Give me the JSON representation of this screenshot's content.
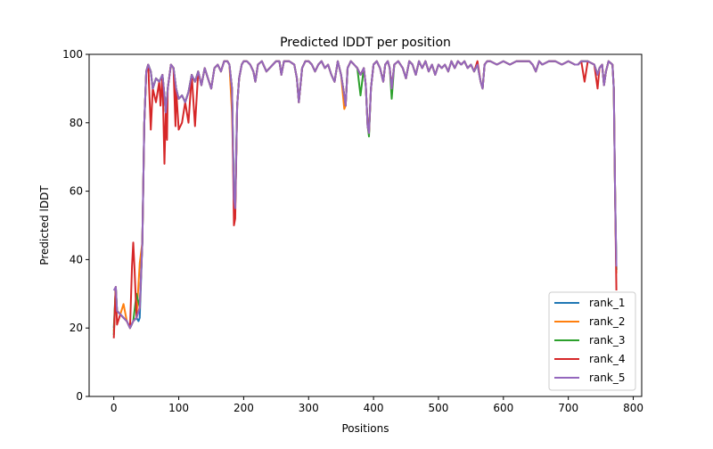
{
  "chart_data": {
    "type": "line",
    "title": "Predicted lDDT per position",
    "xlabel": "Positions",
    "ylabel": "Predicted lDDT",
    "xlim": [
      -38,
      813
    ],
    "ylim": [
      0,
      100
    ],
    "xticks": [
      0,
      100,
      200,
      300,
      400,
      500,
      600,
      700,
      800
    ],
    "yticks": [
      0,
      20,
      40,
      60,
      80,
      100
    ],
    "grid": false,
    "legend_placement": "lower-right",
    "base_profile": [
      [
        0,
        31
      ],
      [
        3,
        32
      ],
      [
        5,
        25
      ],
      [
        10,
        24
      ],
      [
        15,
        23
      ],
      [
        20,
        22
      ],
      [
        25,
        20
      ],
      [
        30,
        22
      ],
      [
        35,
        23
      ],
      [
        40,
        26
      ],
      [
        44,
        45
      ],
      [
        47,
        80
      ],
      [
        50,
        95
      ],
      [
        53,
        97
      ],
      [
        57,
        95
      ],
      [
        60,
        90
      ],
      [
        65,
        93
      ],
      [
        70,
        92
      ],
      [
        75,
        94
      ],
      [
        78,
        88
      ],
      [
        80,
        83
      ],
      [
        83,
        90
      ],
      [
        88,
        97
      ],
      [
        92,
        96
      ],
      [
        96,
        90
      ],
      [
        100,
        87
      ],
      [
        105,
        88
      ],
      [
        110,
        86
      ],
      [
        115,
        89
      ],
      [
        120,
        94
      ],
      [
        125,
        92
      ],
      [
        130,
        95
      ],
      [
        135,
        91
      ],
      [
        140,
        96
      ],
      [
        145,
        93
      ],
      [
        150,
        90
      ],
      [
        155,
        96
      ],
      [
        160,
        97
      ],
      [
        165,
        95
      ],
      [
        170,
        98
      ],
      [
        175,
        98
      ],
      [
        178,
        97
      ],
      [
        182,
        90
      ],
      [
        185,
        58
      ],
      [
        187,
        55
      ],
      [
        190,
        85
      ],
      [
        193,
        93
      ],
      [
        197,
        97
      ],
      [
        200,
        98
      ],
      [
        205,
        98
      ],
      [
        210,
        97
      ],
      [
        215,
        95
      ],
      [
        218,
        92
      ],
      [
        222,
        97
      ],
      [
        228,
        98
      ],
      [
        235,
        95
      ],
      [
        240,
        96
      ],
      [
        245,
        97
      ],
      [
        250,
        98
      ],
      [
        255,
        98
      ],
      [
        258,
        94
      ],
      [
        262,
        98
      ],
      [
        270,
        98
      ],
      [
        278,
        97
      ],
      [
        282,
        93
      ],
      [
        285,
        86
      ],
      [
        290,
        96
      ],
      [
        295,
        98
      ],
      [
        300,
        98
      ],
      [
        305,
        97
      ],
      [
        310,
        95
      ],
      [
        315,
        97
      ],
      [
        320,
        98
      ],
      [
        325,
        96
      ],
      [
        330,
        97
      ],
      [
        335,
        94
      ],
      [
        340,
        92
      ],
      [
        345,
        98
      ],
      [
        350,
        94
      ],
      [
        355,
        88
      ],
      [
        357,
        85
      ],
      [
        360,
        96
      ],
      [
        365,
        98
      ],
      [
        370,
        97
      ],
      [
        375,
        96
      ],
      [
        380,
        94
      ],
      [
        385,
        96
      ],
      [
        388,
        91
      ],
      [
        391,
        79
      ],
      [
        393,
        77
      ],
      [
        396,
        90
      ],
      [
        400,
        97
      ],
      [
        405,
        98
      ],
      [
        410,
        96
      ],
      [
        415,
        92
      ],
      [
        418,
        97
      ],
      [
        422,
        98
      ],
      [
        425,
        96
      ],
      [
        428,
        90
      ],
      [
        432,
        97
      ],
      [
        438,
        98
      ],
      [
        445,
        96
      ],
      [
        450,
        93
      ],
      [
        455,
        98
      ],
      [
        460,
        97
      ],
      [
        465,
        94
      ],
      [
        470,
        98
      ],
      [
        475,
        96
      ],
      [
        480,
        98
      ],
      [
        485,
        95
      ],
      [
        490,
        97
      ],
      [
        495,
        94
      ],
      [
        500,
        97
      ],
      [
        505,
        96
      ],
      [
        510,
        97
      ],
      [
        515,
        95
      ],
      [
        520,
        98
      ],
      [
        525,
        96
      ],
      [
        530,
        98
      ],
      [
        535,
        97
      ],
      [
        540,
        98
      ],
      [
        545,
        96
      ],
      [
        550,
        97
      ],
      [
        555,
        95
      ],
      [
        560,
        97
      ],
      [
        565,
        92
      ],
      [
        568,
        90
      ],
      [
        571,
        97
      ],
      [
        575,
        98
      ],
      [
        580,
        98
      ],
      [
        590,
        97
      ],
      [
        600,
        98
      ],
      [
        610,
        97
      ],
      [
        620,
        98
      ],
      [
        630,
        98
      ],
      [
        640,
        98
      ],
      [
        645,
        97
      ],
      [
        650,
        95
      ],
      [
        655,
        98
      ],
      [
        660,
        97
      ],
      [
        670,
        98
      ],
      [
        680,
        98
      ],
      [
        690,
        97
      ],
      [
        700,
        98
      ],
      [
        710,
        97
      ],
      [
        715,
        97
      ],
      [
        720,
        98
      ],
      [
        730,
        98
      ],
      [
        740,
        97
      ],
      [
        745,
        94
      ],
      [
        748,
        96
      ],
      [
        752,
        97
      ],
      [
        755,
        91
      ],
      [
        758,
        95
      ],
      [
        762,
        98
      ],
      [
        768,
        97
      ],
      [
        770,
        90
      ],
      [
        772,
        60
      ],
      [
        774,
        38
      ]
    ],
    "series": [
      {
        "name": "rank_1",
        "color": "#1f77b4",
        "overrides": [
          [
            0,
            20
          ],
          [
            38,
            22
          ],
          [
            40,
            23
          ],
          [
            774,
            37
          ]
        ]
      },
      {
        "name": "rank_2",
        "color": "#ff7f0e",
        "overrides": [
          [
            0,
            19
          ],
          [
            15,
            27
          ],
          [
            40,
            39
          ],
          [
            182,
            83
          ],
          [
            355,
            84
          ],
          [
            774,
            36
          ]
        ]
      },
      {
        "name": "rank_3",
        "color": "#2ca02c",
        "overrides": [
          [
            0,
            18
          ],
          [
            35,
            30
          ],
          [
            380,
            88
          ],
          [
            393,
            76
          ],
          [
            428,
            87
          ],
          [
            774,
            37
          ]
        ]
      },
      {
        "name": "rank_4",
        "color": "#d62728",
        "overrides": [
          [
            0,
            17
          ],
          [
            5,
            21
          ],
          [
            28,
            38
          ],
          [
            30,
            45
          ],
          [
            32,
            37
          ],
          [
            57,
            78
          ],
          [
            65,
            86
          ],
          [
            72,
            85
          ],
          [
            78,
            68
          ],
          [
            82,
            75
          ],
          [
            95,
            79
          ],
          [
            100,
            78
          ],
          [
            105,
            80
          ],
          [
            115,
            80
          ],
          [
            125,
            79
          ],
          [
            185,
            50
          ],
          [
            187,
            52
          ],
          [
            560,
            98
          ],
          [
            725,
            92
          ],
          [
            745,
            90
          ],
          [
            774,
            31
          ]
        ]
      },
      {
        "name": "rank_5",
        "color": "#9467bd",
        "overrides": []
      }
    ]
  }
}
